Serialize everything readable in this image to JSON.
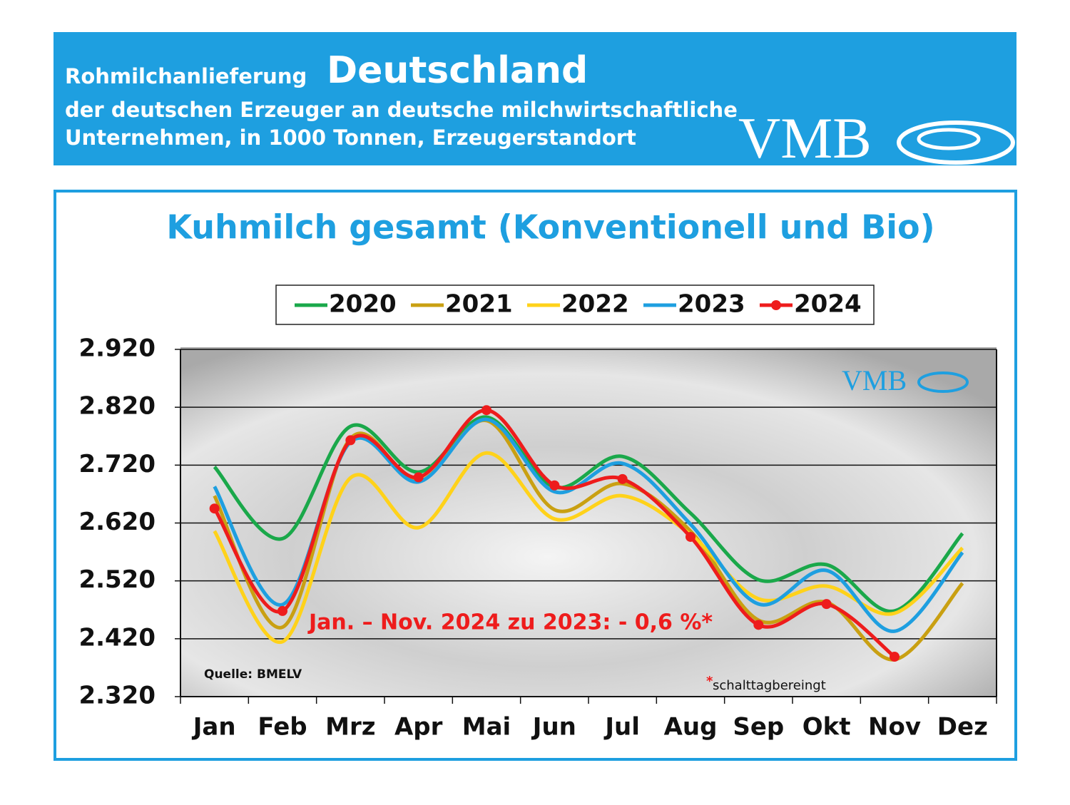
{
  "header": {
    "title_prefix": "Rohmilchanlieferung",
    "title": "Deutschland",
    "line1": "der deutschen Erzeuger an deutsche milchwirtschaftliche",
    "line2": "Unternehmen, in 1000 Tonnen, Erzeugerstandort",
    "logo": "VMB"
  },
  "chart_data": {
    "type": "line",
    "title": "Kuhmilch gesamt (Konventionell und Bio)",
    "categories": [
      "Jan",
      "Feb",
      "Mrz",
      "Apr",
      "Mai",
      "Jun",
      "Jul",
      "Aug",
      "Sep",
      "Okt",
      "Nov",
      "Dez"
    ],
    "series": [
      {
        "name": "2020",
        "color": "#1aa84a",
        "values": [
          2717,
          2593,
          2787,
          2708,
          2803,
          2682,
          2735,
          2637,
          2522,
          2548,
          2468,
          2602
        ]
      },
      {
        "name": "2021",
        "color": "#c9a012",
        "values": [
          2667,
          2440,
          2766,
          2692,
          2797,
          2643,
          2688,
          2606,
          2452,
          2483,
          2384,
          2516
        ]
      },
      {
        "name": "2022",
        "color": "#ffd21a",
        "values": [
          2606,
          2415,
          2698,
          2612,
          2741,
          2627,
          2667,
          2600,
          2489,
          2511,
          2464,
          2577
        ]
      },
      {
        "name": "2023",
        "color": "#1e9fe0",
        "values": [
          2683,
          2479,
          2760,
          2691,
          2799,
          2674,
          2723,
          2618,
          2480,
          2538,
          2433,
          2569
        ]
      },
      {
        "name": "2024",
        "color": "#ee1c1c",
        "marker": "circle",
        "values": [
          2645,
          2468,
          2763,
          2699,
          2815,
          2685,
          2696,
          2596,
          2444,
          2480,
          2389,
          null
        ]
      }
    ],
    "ylim": [
      2320,
      2920
    ],
    "yticks": [
      {
        "value": 2320,
        "label": "2.320"
      },
      {
        "value": 2420,
        "label": "2.420"
      },
      {
        "value": 2520,
        "label": "2.520"
      },
      {
        "value": 2620,
        "label": "2.620"
      },
      {
        "value": 2720,
        "label": "2.720"
      },
      {
        "value": 2820,
        "label": "2.820"
      },
      {
        "value": 2920,
        "label": "2.920"
      }
    ],
    "grid": true,
    "legend": "top",
    "annotation": "Jan. – Nov. 2024 zu 2023: - 0,6 %*",
    "source": "Quelle:  BMELV",
    "footnote_mark": "*",
    "footnote": "schalttagbereingt"
  }
}
